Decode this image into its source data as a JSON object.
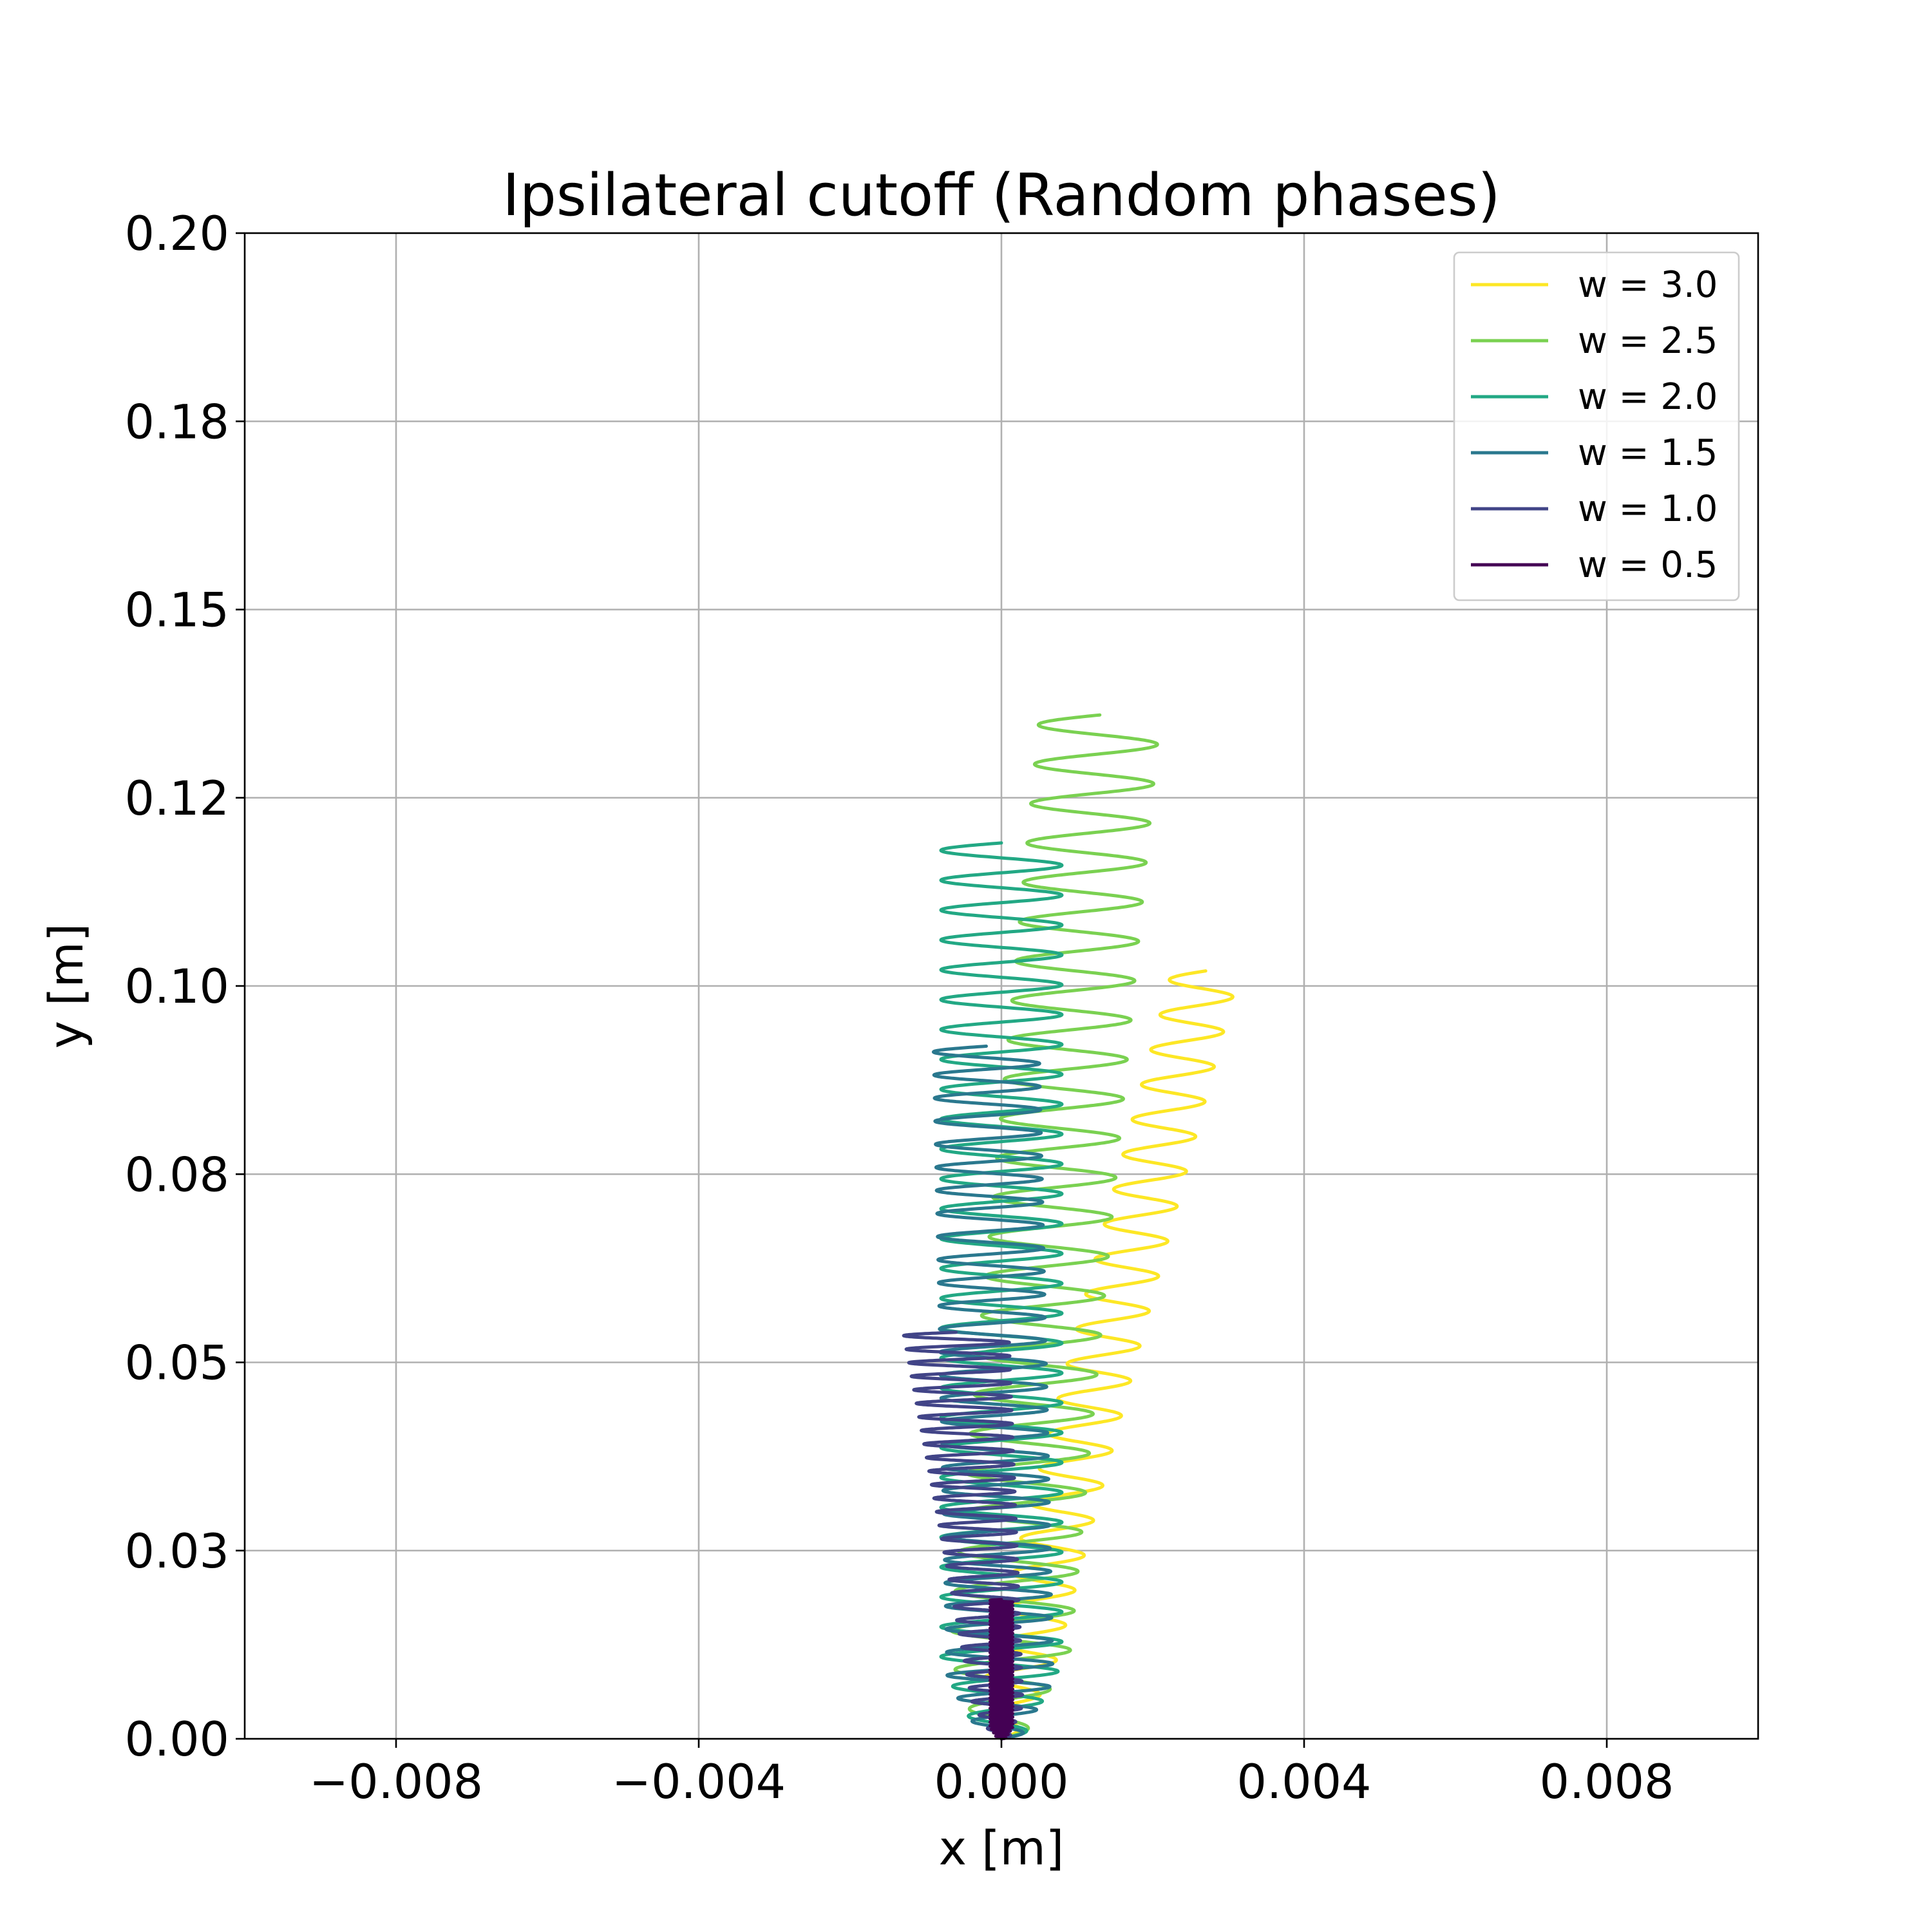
{
  "chart_data": {
    "type": "line",
    "title": "Ipsilateral cutoff (Random phases)",
    "xlabel": "x [m]",
    "ylabel": "y [m]",
    "xlim": [
      -0.01,
      0.01
    ],
    "ylim": [
      0.0,
      0.2
    ],
    "grid": true,
    "legend_position": "top-right",
    "x_ticks": [
      -0.008,
      -0.004,
      0.0,
      0.004,
      0.008
    ],
    "x_tick_labels": [
      "−0.008",
      "−0.004",
      "0.000",
      "0.004",
      "0.008"
    ],
    "y_ticks": [
      0.0,
      0.025,
      0.05,
      0.075,
      0.1,
      0.125,
      0.15,
      0.175,
      0.2
    ],
    "y_tick_labels": [
      "0.00",
      "0.03",
      "0.05",
      "0.08",
      "0.10",
      "0.12",
      "0.15",
      "0.18",
      "0.20"
    ],
    "series": [
      {
        "name": "w = 3.0",
        "color": "#fde725",
        "y_end": 0.102,
        "x_start": 0.0,
        "x_end": 0.0027,
        "amp_start": 0.00045,
        "amp_end": 0.00045,
        "cycles": 22
      },
      {
        "name": "w = 2.5",
        "color": "#7ad151",
        "y_end": 0.136,
        "x_start": 0.0,
        "x_end": 0.0013,
        "amp_start": 0.0008,
        "amp_end": 0.0008,
        "cycles": 26
      },
      {
        "name": "w = 2.0",
        "color": "#22a884",
        "y_end": 0.119,
        "x_start": 0.0,
        "x_end": 0.0,
        "amp_start": 0.0008,
        "amp_end": 0.0008,
        "cycles": 30
      },
      {
        "name": "w = 1.5",
        "color": "#2a788e",
        "y_end": 0.092,
        "x_start": 0.0,
        "x_end": -0.0002,
        "amp_start": 0.0007,
        "amp_end": 0.0007,
        "cycles": 30
      },
      {
        "name": "w = 1.0",
        "color": "#414487",
        "y_end": 0.054,
        "x_start": 0.0,
        "x_end": -0.0006,
        "amp_start": 0.0003,
        "amp_end": 0.0007,
        "cycles": 30
      },
      {
        "name": "w = 0.5",
        "color": "#440154",
        "y_end": 0.0185,
        "x_start": 0.0,
        "x_end": 0.0,
        "amp_start": 0.00015,
        "amp_end": 0.00015,
        "cycles": 40
      }
    ]
  }
}
